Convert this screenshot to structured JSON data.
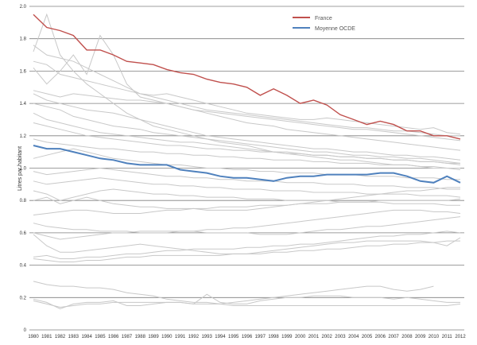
{
  "chart_data": {
    "type": "line",
    "title": "",
    "xlabel": "",
    "ylabel": "Litres par habitant",
    "ylim": [
      0,
      2.0
    ],
    "yticks": [
      "0",
      "0.2",
      "0.4",
      "0.6",
      "0.8",
      "1.0",
      "1.2",
      "1.4",
      "1.6",
      "1.8",
      "2.0"
    ],
    "grid": true,
    "legend_position": "top-right",
    "x": [
      "1980",
      "1981",
      "1982",
      "1983",
      "1984",
      "1985",
      "1986",
      "1987",
      "1988",
      "1989",
      "1990",
      "1991",
      "1992",
      "1993",
      "1994",
      "1995",
      "1996",
      "1997",
      "1998",
      "1999",
      "2000",
      "2001",
      "2002",
      "2003",
      "2004",
      "2005",
      "2006",
      "2007",
      "2008",
      "2009",
      "2010",
      "2011",
      "2012"
    ],
    "series": [
      {
        "name": "France",
        "color": "#c0504d",
        "values": [
          1.95,
          1.87,
          1.85,
          1.82,
          1.73,
          1.73,
          1.7,
          1.66,
          1.65,
          1.64,
          1.61,
          1.59,
          1.58,
          1.55,
          1.53,
          1.52,
          1.5,
          1.45,
          1.49,
          1.45,
          1.4,
          1.42,
          1.39,
          1.33,
          1.3,
          1.27,
          1.29,
          1.27,
          1.23,
          1.23,
          1.2,
          1.2,
          1.18
        ]
      },
      {
        "name": "Moyenne OCDE",
        "color": "#4f81bd",
        "values": [
          1.14,
          1.12,
          1.12,
          1.1,
          1.08,
          1.06,
          1.05,
          1.03,
          1.02,
          1.02,
          1.02,
          0.99,
          0.98,
          0.97,
          0.95,
          0.94,
          0.94,
          0.93,
          0.92,
          0.94,
          0.95,
          0.95,
          0.96,
          0.96,
          0.96,
          0.96,
          0.97,
          0.97,
          0.95,
          0.92,
          0.91,
          0.95,
          0.91
        ]
      }
    ],
    "background_series_color": "#c8c8c8",
    "background_series": [
      [
        1.72,
        1.95,
        1.7,
        1.6,
        1.52,
        1.46,
        1.4,
        1.34,
        1.3,
        1.26,
        1.24,
        1.22,
        1.2,
        1.18,
        1.16,
        1.15,
        1.14,
        1.12,
        1.1,
        1.09,
        1.08,
        1.07,
        1.06,
        1.05,
        1.05,
        1.04,
        1.03,
        1.02,
        1.02,
        1.01,
        1.0,
        1.0,
        0.99
      ],
      [
        1.62,
        1.52,
        1.6,
        1.7,
        1.58,
        1.82,
        1.7,
        1.52,
        1.44,
        1.42,
        1.4,
        1.38,
        1.36,
        1.34,
        1.32,
        1.3,
        1.28,
        1.27,
        1.26,
        1.24,
        1.23,
        1.22,
        1.21,
        1.2,
        1.19,
        1.18,
        1.17,
        1.16,
        1.15,
        1.14,
        1.13,
        1.12,
        1.11
      ],
      [
        1.76,
        1.7,
        1.68,
        1.66,
        1.62,
        1.58,
        1.54,
        1.5,
        1.46,
        1.44,
        1.42,
        1.4,
        1.38,
        1.36,
        1.35,
        1.34,
        1.33,
        1.32,
        1.31,
        1.3,
        1.29,
        1.28,
        1.27,
        1.26,
        1.25,
        1.25,
        1.24,
        1.23,
        1.23,
        1.22,
        1.21,
        1.2,
        1.2
      ],
      [
        1.66,
        1.64,
        1.58,
        1.56,
        1.54,
        1.52,
        1.5,
        1.48,
        1.46,
        1.45,
        1.46,
        1.44,
        1.42,
        1.4,
        1.38,
        1.36,
        1.34,
        1.33,
        1.32,
        1.31,
        1.3,
        1.3,
        1.31,
        1.3,
        1.29,
        1.28,
        1.27,
        1.26,
        1.25,
        1.24,
        1.25,
        1.22,
        1.21
      ],
      [
        1.48,
        1.46,
        1.44,
        1.46,
        1.45,
        1.44,
        1.43,
        1.42,
        1.42,
        1.41,
        1.4,
        1.38,
        1.36,
        1.35,
        1.34,
        1.33,
        1.32,
        1.31,
        1.3,
        1.29,
        1.28,
        1.27,
        1.26,
        1.25,
        1.24,
        1.24,
        1.23,
        1.22,
        1.21,
        1.2,
        1.19,
        1.18,
        1.17
      ],
      [
        1.46,
        1.42,
        1.4,
        1.38,
        1.36,
        1.35,
        1.34,
        1.32,
        1.3,
        1.28,
        1.26,
        1.24,
        1.22,
        1.2,
        1.19,
        1.18,
        1.17,
        1.16,
        1.15,
        1.14,
        1.13,
        1.12,
        1.12,
        1.11,
        1.1,
        1.1,
        1.09,
        1.08,
        1.08,
        1.07,
        1.07,
        1.06,
        1.05
      ],
      [
        1.4,
        1.38,
        1.36,
        1.32,
        1.3,
        1.28,
        1.26,
        1.25,
        1.24,
        1.22,
        1.21,
        1.2,
        1.19,
        1.18,
        1.17,
        1.16,
        1.15,
        1.14,
        1.13,
        1.12,
        1.11,
        1.1,
        1.1,
        1.09,
        1.08,
        1.08,
        1.07,
        1.07,
        1.06,
        1.06,
        1.05,
        1.04,
        1.03
      ],
      [
        1.34,
        1.3,
        1.28,
        1.26,
        1.24,
        1.22,
        1.21,
        1.2,
        1.19,
        1.18,
        1.17,
        1.16,
        1.16,
        1.15,
        1.14,
        1.13,
        1.12,
        1.11,
        1.1,
        1.1,
        1.09,
        1.08,
        1.08,
        1.07,
        1.07,
        1.06,
        1.06,
        1.05,
        1.05,
        1.04,
        1.04,
        1.03,
        1.02
      ],
      [
        1.28,
        1.26,
        1.24,
        1.22,
        1.2,
        1.19,
        1.18,
        1.17,
        1.16,
        1.15,
        1.14,
        1.14,
        1.13,
        1.12,
        1.12,
        1.11,
        1.11,
        1.1,
        1.1,
        1.09,
        1.09,
        1.08,
        1.08,
        1.07,
        1.07,
        1.06,
        1.06,
        1.05,
        1.05,
        1.04,
        1.04,
        1.03,
        1.03
      ],
      [
        1.18,
        1.16,
        1.15,
        1.14,
        1.13,
        1.12,
        1.12,
        1.11,
        1.1,
        1.1,
        1.09,
        1.09,
        1.08,
        1.08,
        1.07,
        1.07,
        1.06,
        1.06,
        1.05,
        1.05,
        1.05,
        1.04,
        1.04,
        1.03,
        1.03,
        1.03,
        1.02,
        1.02,
        1.02,
        1.01,
        1.01,
        1.0,
        1.0
      ],
      [
        1.06,
        1.08,
        1.1,
        1.12,
        1.1,
        1.08,
        1.06,
        1.05,
        1.04,
        1.03,
        1.02,
        1.02,
        1.01,
        1.0,
        1.0,
        0.99,
        0.99,
        0.98,
        0.98,
        0.97,
        0.97,
        0.97,
        0.96,
        0.96,
        0.96,
        0.95,
        0.95,
        0.95,
        0.94,
        0.94,
        0.94,
        0.93,
        0.93
      ],
      [
        0.98,
        0.96,
        0.97,
        0.98,
        0.99,
        1.0,
        0.99,
        0.98,
        0.97,
        0.96,
        0.95,
        0.95,
        0.94,
        0.94,
        0.93,
        0.93,
        0.92,
        0.92,
        0.92,
        0.91,
        0.91,
        0.91,
        0.9,
        0.9,
        0.9,
        0.89,
        0.89,
        0.89,
        0.88,
        0.88,
        0.88,
        0.87,
        0.87
      ],
      [
        0.92,
        0.9,
        0.91,
        0.92,
        0.93,
        0.94,
        0.93,
        0.92,
        0.91,
        0.9,
        0.9,
        0.89,
        0.89,
        0.88,
        0.88,
        0.87,
        0.87,
        0.87,
        0.86,
        0.86,
        0.86,
        0.85,
        0.85,
        0.85,
        0.85,
        0.84,
        0.84,
        0.84,
        0.84,
        0.83,
        0.83,
        0.83,
        0.82
      ],
      [
        0.86,
        0.84,
        0.8,
        0.82,
        0.84,
        0.86,
        0.87,
        0.86,
        0.85,
        0.84,
        0.84,
        0.83,
        0.83,
        0.82,
        0.82,
        0.82,
        0.81,
        0.81,
        0.81,
        0.8,
        0.8,
        0.8,
        0.8,
        0.79,
        0.79,
        0.79,
        0.79,
        0.78,
        0.78,
        0.78,
        0.78,
        0.77,
        0.77
      ],
      [
        0.8,
        0.82,
        0.78,
        0.8,
        0.82,
        0.8,
        0.78,
        0.77,
        0.76,
        0.76,
        0.75,
        0.75,
        0.75,
        0.74,
        0.74,
        0.74,
        0.74,
        0.75,
        0.76,
        0.77,
        0.78,
        0.79,
        0.8,
        0.81,
        0.82,
        0.83,
        0.84,
        0.85,
        0.86,
        0.86,
        0.87,
        0.88,
        0.88
      ],
      [
        0.71,
        0.72,
        0.73,
        0.74,
        0.74,
        0.73,
        0.72,
        0.72,
        0.72,
        0.73,
        0.74,
        0.74,
        0.75,
        0.75,
        0.76,
        0.76,
        0.76,
        0.77,
        0.77,
        0.77,
        0.78,
        0.78,
        0.78,
        0.79,
        0.79,
        0.79,
        0.8,
        0.8,
        0.8,
        0.8,
        0.8,
        0.8,
        0.81
      ],
      [
        0.66,
        0.64,
        0.63,
        0.62,
        0.62,
        0.61,
        0.61,
        0.61,
        0.6,
        0.6,
        0.6,
        0.61,
        0.61,
        0.62,
        0.62,
        0.63,
        0.63,
        0.64,
        0.65,
        0.66,
        0.67,
        0.68,
        0.69,
        0.7,
        0.71,
        0.72,
        0.73,
        0.74,
        0.74,
        0.74,
        0.73,
        0.73,
        0.72
      ],
      [
        0.6,
        0.58,
        0.56,
        0.57,
        0.58,
        0.59,
        0.6,
        0.6,
        0.61,
        0.61,
        0.61,
        0.61,
        0.61,
        0.6,
        0.6,
        0.6,
        0.6,
        0.59,
        0.59,
        0.59,
        0.6,
        0.61,
        0.62,
        0.62,
        0.63,
        0.64,
        0.64,
        0.65,
        0.66,
        0.67,
        0.68,
        0.69,
        0.7
      ],
      [
        0.59,
        0.52,
        0.48,
        0.48,
        0.49,
        0.5,
        0.51,
        0.52,
        0.53,
        0.52,
        0.51,
        0.5,
        0.49,
        0.48,
        0.47,
        0.47,
        0.47,
        0.48,
        0.49,
        0.5,
        0.51,
        0.52,
        0.53,
        0.54,
        0.54,
        0.55,
        0.55,
        0.55,
        0.55,
        0.55,
        0.54,
        0.52,
        0.57
      ],
      [
        0.45,
        0.46,
        0.44,
        0.44,
        0.45,
        0.45,
        0.46,
        0.47,
        0.47,
        0.48,
        0.49,
        0.49,
        0.5,
        0.5,
        0.5,
        0.5,
        0.51,
        0.51,
        0.52,
        0.52,
        0.53,
        0.53,
        0.54,
        0.55,
        0.56,
        0.57,
        0.58,
        0.58,
        0.59,
        0.59,
        0.6,
        0.61,
        0.6
      ],
      [
        0.44,
        0.43,
        0.42,
        0.42,
        0.43,
        0.43,
        0.44,
        0.45,
        0.45,
        0.46,
        0.46,
        0.46,
        0.46,
        0.46,
        0.46,
        0.47,
        0.47,
        0.47,
        0.48,
        0.48,
        0.49,
        0.49,
        0.5,
        0.5,
        0.51,
        0.52,
        0.52,
        0.53,
        0.53,
        0.54,
        0.54,
        0.55,
        0.55
      ],
      [
        0.3,
        0.28,
        0.27,
        0.27,
        0.26,
        0.26,
        0.25,
        0.23,
        0.22,
        0.21,
        0.19,
        0.18,
        0.17,
        0.17,
        0.16,
        0.17,
        0.18,
        0.19,
        0.2,
        0.21,
        0.22,
        0.23,
        0.24,
        0.25,
        0.26,
        0.27,
        0.27,
        0.25,
        0.24,
        0.25,
        0.27,
        null,
        null
      ],
      [
        0.19,
        0.17,
        0.13,
        0.16,
        0.17,
        0.17,
        0.18,
        0.15,
        0.15,
        0.16,
        0.17,
        0.17,
        0.16,
        0.22,
        0.17,
        0.16,
        0.16,
        0.18,
        0.19,
        0.2,
        0.2,
        0.21,
        0.21,
        0.21,
        0.2,
        0.2,
        0.2,
        0.19,
        0.2,
        0.19,
        0.18,
        0.17,
        0.17
      ],
      [
        0.18,
        0.16,
        0.14,
        0.15,
        0.16,
        0.16,
        0.17,
        0.17,
        0.17,
        0.17,
        0.17,
        0.17,
        0.16,
        0.16,
        0.16,
        0.15,
        0.15,
        0.15,
        0.15,
        0.15,
        0.15,
        0.15,
        0.15,
        0.15,
        0.15,
        0.15,
        0.15,
        0.15,
        0.15,
        0.15,
        0.15,
        0.15,
        0.16
      ]
    ]
  }
}
